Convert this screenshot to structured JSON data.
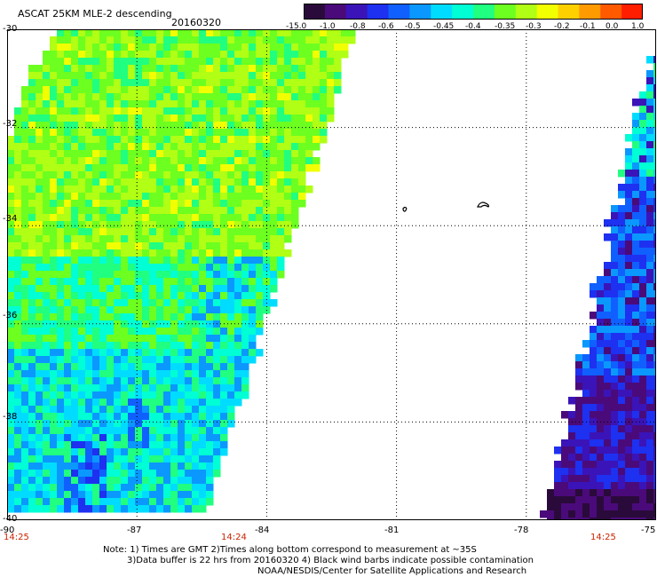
{
  "header": {
    "title": "ASCAT 25KM MLE-2 descending",
    "date": "20160320"
  },
  "colorbar": {
    "ticks": [
      "-15.0",
      "-1.0",
      "-0.8",
      "-0.6",
      "-0.5",
      "-0.45",
      "-0.4",
      "-0.35",
      "-0.3",
      "-0.2",
      "-0.1",
      "0.0",
      "1.0"
    ],
    "colors": [
      "#2a0a3a",
      "#4a0a7a",
      "#3a14b8",
      "#1e30f0",
      "#1060ff",
      "#0a98ff",
      "#00dcff",
      "#00ffd4",
      "#20ff80",
      "#6cff20",
      "#b0ff14",
      "#f2ff00",
      "#ffd000",
      "#ff9a00",
      "#ff5a00",
      "#ff1e00"
    ]
  },
  "map": {
    "lat_labels": [
      "-30",
      "-32",
      "-34",
      "-36",
      "-38",
      "-40"
    ],
    "lon_labels": [
      "-90",
      "-87",
      "-84",
      "-81",
      "-78",
      "-75"
    ],
    "lat_range": [
      -40,
      -30
    ],
    "lon_range": [
      -90,
      -75
    ],
    "swath_times": [
      "14:25",
      "14:24",
      "14:25"
    ]
  },
  "notes": {
    "line1": "Note: 1) Times are GMT 2)Times along bottom correspond to measurement at ~35S",
    "line2": "3)Data buffer is 22 hrs from 20160320 4) Black wind barbs indicate possible contamination",
    "line3": "NOAA/NESDIS/Center for Satellite Applications and Research"
  }
}
